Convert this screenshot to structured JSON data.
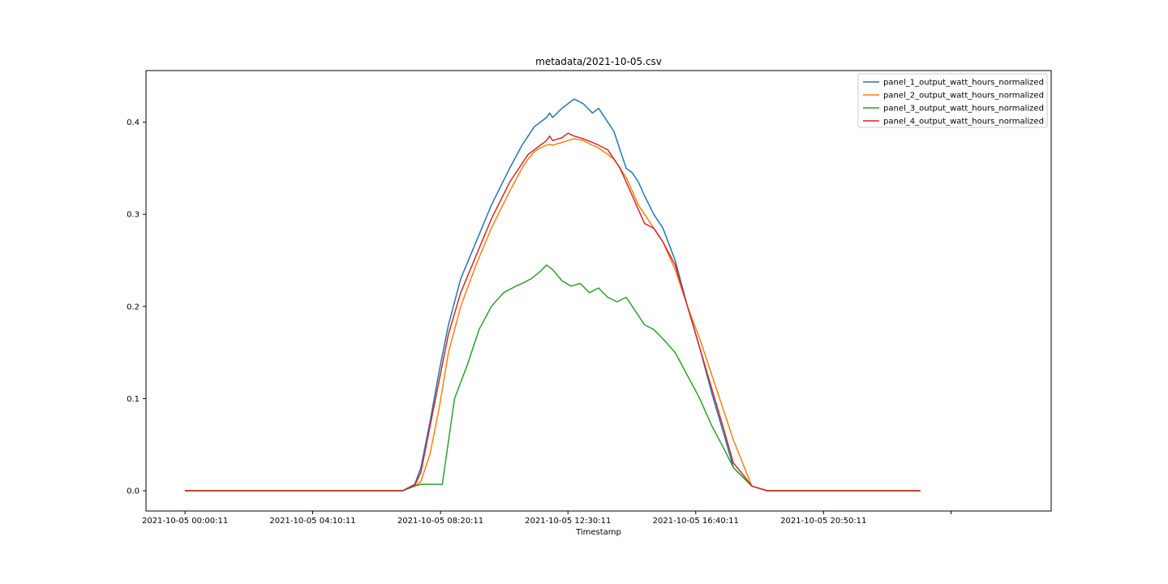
{
  "chart_data": {
    "type": "line",
    "title": "metadata/2021-10-05.csv",
    "xlabel": "Timestamp",
    "ylabel": "",
    "x_unit": "hours of day 2021-10-05",
    "xlim": [
      -1.27,
      28.27
    ],
    "ylim": [
      -0.022,
      0.456
    ],
    "grid": false,
    "legend_position": "top-right",
    "x_ticks": [
      {
        "value": 0.003,
        "label": "2021-10-05 00:00:11"
      },
      {
        "value": 4.17,
        "label": "2021-10-05 04:10:11"
      },
      {
        "value": 8.34,
        "label": "2021-10-05 08:20:11"
      },
      {
        "value": 12.5,
        "label": "2021-10-05 12:30:11"
      },
      {
        "value": 16.67,
        "label": "2021-10-05 16:40:11"
      },
      {
        "value": 20.84,
        "label": "2021-10-05 20:50:11"
      },
      {
        "value": 25.0,
        "label": ""
      }
    ],
    "y_ticks": [
      {
        "value": 0.0,
        "label": "0.0"
      },
      {
        "value": 0.1,
        "label": "0.1"
      },
      {
        "value": 0.2,
        "label": "0.2"
      },
      {
        "value": 0.3,
        "label": "0.3"
      },
      {
        "value": 0.4,
        "label": "0.4"
      }
    ],
    "series": [
      {
        "name": "panel_1_output_watt_hours_normalized",
        "color": "#1f77b4",
        "x": [
          0,
          7.1,
          7.5,
          7.7,
          8.0,
          8.3,
          8.6,
          9.0,
          9.5,
          10.0,
          10.3,
          10.6,
          11.0,
          11.2,
          11.4,
          11.6,
          11.8,
          11.9,
          12.0,
          12.3,
          12.5,
          12.7,
          13.0,
          13.3,
          13.5,
          13.8,
          14.0,
          14.2,
          14.4,
          14.6,
          14.8,
          15.0,
          15.3,
          15.6,
          16.0,
          16.4,
          16.8,
          17.2,
          17.6,
          17.9,
          18.2,
          18.5,
          19.0,
          20.0,
          24.0
        ],
        "y": [
          0.0,
          0.0,
          0.007,
          0.025,
          0.075,
          0.13,
          0.18,
          0.23,
          0.27,
          0.31,
          0.33,
          0.35,
          0.375,
          0.385,
          0.395,
          0.4,
          0.405,
          0.41,
          0.405,
          0.415,
          0.42,
          0.425,
          0.42,
          0.41,
          0.415,
          0.4,
          0.39,
          0.37,
          0.35,
          0.345,
          0.335,
          0.32,
          0.3,
          0.285,
          0.25,
          0.2,
          0.155,
          0.105,
          0.06,
          0.025,
          0.015,
          0.005,
          0.0,
          0.0,
          0.0
        ]
      },
      {
        "name": "panel_2_output_watt_hours_normalized",
        "color": "#ff7f0e",
        "x": [
          0,
          7.1,
          7.5,
          7.7,
          8.0,
          8.3,
          8.6,
          9.0,
          9.5,
          10.0,
          10.3,
          10.6,
          11.0,
          11.2,
          11.4,
          11.6,
          11.8,
          11.9,
          12.0,
          12.3,
          12.5,
          12.7,
          13.0,
          13.3,
          13.5,
          13.8,
          14.0,
          14.2,
          14.4,
          14.6,
          14.8,
          15.0,
          15.3,
          15.6,
          16.0,
          16.4,
          16.8,
          17.2,
          17.6,
          17.9,
          18.2,
          18.5,
          19.0,
          20.0,
          24.0
        ],
        "y": [
          0.0,
          0.0,
          0.005,
          0.01,
          0.04,
          0.09,
          0.15,
          0.2,
          0.245,
          0.285,
          0.305,
          0.325,
          0.35,
          0.36,
          0.368,
          0.372,
          0.375,
          0.376,
          0.375,
          0.378,
          0.38,
          0.382,
          0.38,
          0.375,
          0.372,
          0.365,
          0.36,
          0.35,
          0.34,
          0.325,
          0.31,
          0.3,
          0.285,
          0.27,
          0.24,
          0.2,
          0.165,
          0.125,
          0.085,
          0.055,
          0.03,
          0.005,
          0.0,
          0.0,
          0.0
        ]
      },
      {
        "name": "panel_3_output_watt_hours_normalized",
        "color": "#2ca02c",
        "x": [
          0,
          7.1,
          7.5,
          7.7,
          8.0,
          8.4,
          8.8,
          9.2,
          9.6,
          10.0,
          10.4,
          10.8,
          11.0,
          11.3,
          11.6,
          11.8,
          12.0,
          12.3,
          12.6,
          12.9,
          13.2,
          13.5,
          13.8,
          14.1,
          14.4,
          14.6,
          14.8,
          15.0,
          15.3,
          15.6,
          16.0,
          16.4,
          16.8,
          17.2,
          17.6,
          17.9,
          18.2,
          18.5,
          19.0,
          20.0,
          24.0
        ],
        "y": [
          0.0,
          0.0,
          0.005,
          0.007,
          0.007,
          0.007,
          0.1,
          0.135,
          0.175,
          0.2,
          0.215,
          0.222,
          0.225,
          0.23,
          0.238,
          0.245,
          0.24,
          0.228,
          0.222,
          0.225,
          0.215,
          0.22,
          0.21,
          0.205,
          0.21,
          0.2,
          0.19,
          0.18,
          0.175,
          0.165,
          0.15,
          0.125,
          0.1,
          0.07,
          0.045,
          0.025,
          0.015,
          0.005,
          0.0,
          0.0,
          0.0
        ]
      },
      {
        "name": "panel_4_output_watt_hours_normalized",
        "color": "#d62728",
        "x": [
          0,
          7.1,
          7.5,
          7.7,
          8.0,
          8.3,
          8.6,
          9.0,
          9.5,
          10.0,
          10.3,
          10.6,
          11.0,
          11.2,
          11.4,
          11.6,
          11.8,
          11.9,
          12.0,
          12.3,
          12.5,
          12.7,
          13.0,
          13.3,
          13.5,
          13.8,
          14.0,
          14.2,
          14.4,
          14.6,
          14.8,
          15.0,
          15.3,
          15.6,
          16.0,
          16.4,
          16.8,
          17.2,
          17.6,
          17.9,
          18.2,
          18.5,
          19.0,
          20.0,
          24.0
        ],
        "y": [
          0.0,
          0.0,
          0.006,
          0.02,
          0.07,
          0.12,
          0.17,
          0.215,
          0.255,
          0.295,
          0.315,
          0.335,
          0.355,
          0.365,
          0.37,
          0.375,
          0.38,
          0.385,
          0.38,
          0.383,
          0.388,
          0.385,
          0.382,
          0.378,
          0.375,
          0.37,
          0.36,
          0.35,
          0.335,
          0.32,
          0.305,
          0.29,
          0.285,
          0.27,
          0.245,
          0.2,
          0.155,
          0.11,
          0.065,
          0.03,
          0.018,
          0.005,
          0.0,
          0.0,
          0.0
        ]
      }
    ]
  }
}
